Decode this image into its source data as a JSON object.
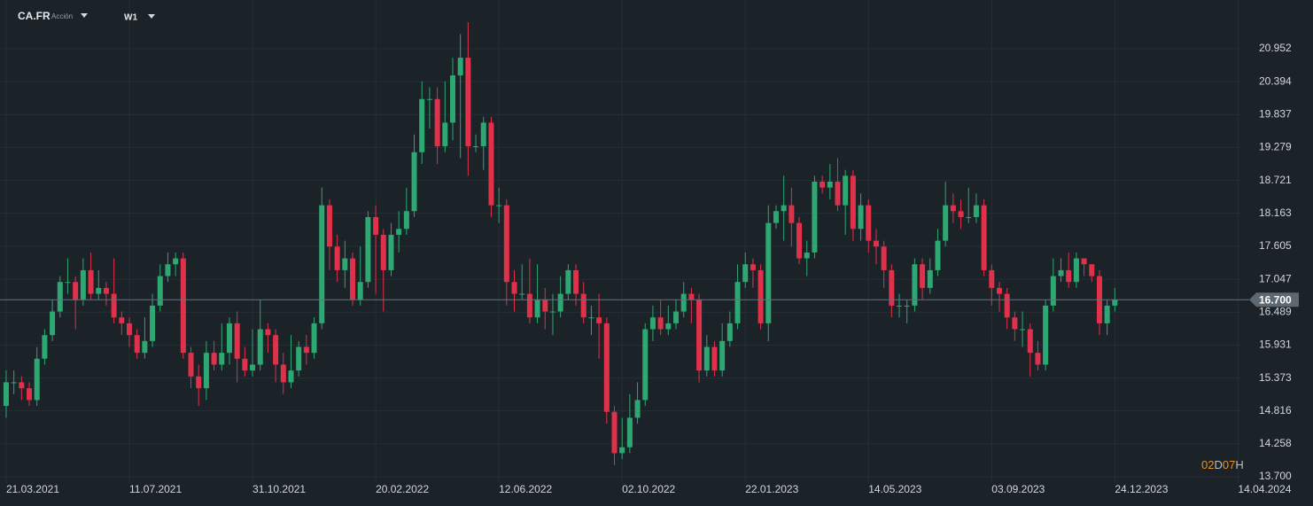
{
  "header": {
    "symbol": "CA.FR",
    "kind": "Acción",
    "timeframe": "W1"
  },
  "countdown": {
    "days": "02",
    "days_unit": "D",
    "hours": "07",
    "hours_unit": "H"
  },
  "chart_data": {
    "type": "candlestick",
    "up_color": "#2ea872",
    "down_color": "#e0314b",
    "grid": true,
    "xlim": [
      -0.8,
      160.3
    ],
    "xticks": [
      {
        "value": 0,
        "label": "21.03.2021"
      },
      {
        "value": 16,
        "label": "11.07.2021"
      },
      {
        "value": 32,
        "label": "31.10.2021"
      },
      {
        "value": 48,
        "label": "20.02.2022"
      },
      {
        "value": 64,
        "label": "12.06.2022"
      },
      {
        "value": 80,
        "label": "02.10.2022"
      },
      {
        "value": 96,
        "label": "22.01.2023"
      },
      {
        "value": 112,
        "label": "14.05.2023"
      },
      {
        "value": 128,
        "label": "03.09.2023"
      },
      {
        "value": 144,
        "label": "24.12.2023"
      },
      {
        "value": 160,
        "label": "14.04.2024"
      }
    ],
    "ylim": [
      13.595,
      21.778
    ],
    "yticks": [
      20.952,
      20.394,
      19.837,
      19.279,
      18.721,
      18.163,
      17.605,
      17.047,
      16.489,
      15.931,
      15.373,
      14.816,
      14.258,
      {
        "value": 13.7,
        "label": "13.700"
      }
    ],
    "current_price": {
      "value": 16.7,
      "label": "16.700"
    },
    "open": [
      14.9,
      15.3,
      15.3,
      15.2,
      15.0,
      15.7,
      16.1,
      16.5,
      17.0,
      17.0,
      16.7,
      17.2,
      16.8,
      16.9,
      16.8,
      16.4,
      16.3,
      16.1,
      15.8,
      16.0,
      16.6,
      17.1,
      17.3,
      17.4,
      15.8,
      15.4,
      15.2,
      15.8,
      15.6,
      15.8,
      16.3,
      15.7,
      15.5,
      15.6,
      16.2,
      16.1,
      15.6,
      15.3,
      15.5,
      15.9,
      15.8,
      16.3,
      18.3,
      17.6,
      17.2,
      17.4,
      16.7,
      17.0,
      18.1,
      17.8,
      17.2,
      17.8,
      17.9,
      18.2,
      19.2,
      20.1,
      20.1,
      19.3,
      19.7,
      20.5,
      20.8,
      19.3,
      19.3,
      19.7,
      18.3,
      18.3,
      17.0,
      16.8,
      16.8,
      16.4,
      16.7,
      16.5,
      16.5,
      16.8,
      17.2,
      16.8,
      16.4,
      16.4,
      16.3,
      14.8,
      14.1,
      14.2,
      14.7,
      15.0,
      16.2,
      16.4,
      16.2,
      16.3,
      16.5,
      16.8,
      16.7,
      15.5,
      15.9,
      15.5,
      16.0,
      16.3,
      17.0,
      17.3,
      17.2,
      16.3,
      18.0,
      18.2,
      18.3,
      18.0,
      17.4,
      17.5,
      18.7,
      18.6,
      18.7,
      18.3,
      18.8,
      17.9,
      18.3,
      17.7,
      17.6,
      17.2,
      16.6,
      16.6,
      16.6,
      17.3,
      16.9,
      17.2,
      17.7,
      18.3,
      18.2,
      18.1,
      18.1,
      18.3,
      17.2,
      16.9,
      16.8,
      16.4,
      16.2,
      16.2,
      15.8,
      15.6,
      16.6,
      17.1,
      17.2,
      17.0,
      17.4,
      17.3,
      17.1,
      16.3,
      16.6
    ],
    "high": [
      15.5,
      15.5,
      15.4,
      15.3,
      15.9,
      16.2,
      16.7,
      17.1,
      17.4,
      17.1,
      17.4,
      17.5,
      17.2,
      17.0,
      17.4,
      16.5,
      16.4,
      16.2,
      16.4,
      16.8,
      17.3,
      17.5,
      17.5,
      17.5,
      15.9,
      15.6,
      16.0,
      16.0,
      16.3,
      16.4,
      16.5,
      15.9,
      16.2,
      16.7,
      16.3,
      16.2,
      15.8,
      16.1,
      16.0,
      16.1,
      16.4,
      18.6,
      18.4,
      17.8,
      17.7,
      17.5,
      17.6,
      18.2,
      18.3,
      17.9,
      18.0,
      18.2,
      18.6,
      19.5,
      20.4,
      20.3,
      20.3,
      20.4,
      20.8,
      21.2,
      21.4,
      19.5,
      19.8,
      19.8,
      18.6,
      18.4,
      17.2,
      17.3,
      17.4,
      17.3,
      16.9,
      16.8,
      17.1,
      17.3,
      17.3,
      17.0,
      16.6,
      16.8,
      16.4,
      14.9,
      14.7,
      15.1,
      15.3,
      16.3,
      16.6,
      16.7,
      16.6,
      16.7,
      17.0,
      16.9,
      16.8,
      16.1,
      16.0,
      16.3,
      16.5,
      17.3,
      17.5,
      17.4,
      17.3,
      18.3,
      18.3,
      18.8,
      18.6,
      18.1,
      17.7,
      18.8,
      18.8,
      19.0,
      19.1,
      18.9,
      18.9,
      18.5,
      18.4,
      17.9,
      17.7,
      17.3,
      16.8,
      16.7,
      17.4,
      17.4,
      17.4,
      17.9,
      18.7,
      18.5,
      18.4,
      18.6,
      18.5,
      18.4,
      17.3,
      17.0,
      16.9,
      16.5,
      16.5,
      16.3,
      16.0,
      16.7,
      17.4,
      17.4,
      17.5,
      17.5,
      17.4,
      17.3,
      17.2,
      16.7,
      16.9
    ],
    "low": [
      14.7,
      15.1,
      15.0,
      14.9,
      14.9,
      15.6,
      16.0,
      16.4,
      16.8,
      16.2,
      16.6,
      16.7,
      16.7,
      16.6,
      16.3,
      16.1,
      15.9,
      15.7,
      15.7,
      15.9,
      16.5,
      17.0,
      17.1,
      15.7,
      15.2,
      14.9,
      15.0,
      15.5,
      15.5,
      15.6,
      15.3,
      15.4,
      15.4,
      15.5,
      15.8,
      15.3,
      15.1,
      15.2,
      15.4,
      15.6,
      15.7,
      16.2,
      17.2,
      17.0,
      16.9,
      16.6,
      16.6,
      16.9,
      16.8,
      16.5,
      17.1,
      17.5,
      17.8,
      18.1,
      19.0,
      19.6,
      19.0,
      19.2,
      19.4,
      19.1,
      18.8,
      19.2,
      18.9,
      18.1,
      18.0,
      16.6,
      16.5,
      16.7,
      16.3,
      16.3,
      16.2,
      16.1,
      16.4,
      16.7,
      16.6,
      16.3,
      16.1,
      15.7,
      14.6,
      13.9,
      14.0,
      14.1,
      14.6,
      14.9,
      16.0,
      16.1,
      16.1,
      16.2,
      16.4,
      16.3,
      15.3,
      15.4,
      15.4,
      15.4,
      15.9,
      16.2,
      16.9,
      16.9,
      16.2,
      16.0,
      17.9,
      17.7,
      17.6,
      17.3,
      17.1,
      17.4,
      18.5,
      18.4,
      18.2,
      17.8,
      17.7,
      17.7,
      17.5,
      17.3,
      16.9,
      16.4,
      16.4,
      16.3,
      16.5,
      16.7,
      16.8,
      17.1,
      17.6,
      18.0,
      17.9,
      18.0,
      18.0,
      17.1,
      16.6,
      16.5,
      16.2,
      16.0,
      15.9,
      15.4,
      15.5,
      15.5,
      16.5,
      17.0,
      16.9,
      16.9,
      17.1,
      17.0,
      16.1,
      16.1,
      16.5
    ],
    "close": [
      15.3,
      15.3,
      15.2,
      15.0,
      15.7,
      16.1,
      16.5,
      17.0,
      17.0,
      16.7,
      17.2,
      16.8,
      16.9,
      16.8,
      16.4,
      16.3,
      16.1,
      15.8,
      16.0,
      16.6,
      17.1,
      17.3,
      17.4,
      15.8,
      15.4,
      15.2,
      15.8,
      15.6,
      15.8,
      16.3,
      15.7,
      15.5,
      15.6,
      16.2,
      16.1,
      15.6,
      15.3,
      15.5,
      15.9,
      15.8,
      16.3,
      18.3,
      17.6,
      17.2,
      17.4,
      16.7,
      17.0,
      18.1,
      17.8,
      17.2,
      17.8,
      17.9,
      18.2,
      19.2,
      20.1,
      20.1,
      19.3,
      19.7,
      20.5,
      20.8,
      19.3,
      19.3,
      19.7,
      18.3,
      18.3,
      17.0,
      16.8,
      16.8,
      16.4,
      16.7,
      16.5,
      16.5,
      16.8,
      17.2,
      16.8,
      16.4,
      16.4,
      16.3,
      14.8,
      14.1,
      14.2,
      14.7,
      15.0,
      16.2,
      16.4,
      16.2,
      16.3,
      16.5,
      16.8,
      16.7,
      15.5,
      15.9,
      15.5,
      16.0,
      16.3,
      17.0,
      17.3,
      17.2,
      16.3,
      18.0,
      18.2,
      18.3,
      18.0,
      17.4,
      17.5,
      18.7,
      18.6,
      18.7,
      18.3,
      18.8,
      17.9,
      18.3,
      17.7,
      17.6,
      17.2,
      16.6,
      16.6,
      16.6,
      17.3,
      16.9,
      17.2,
      17.7,
      18.3,
      18.2,
      18.1,
      18.1,
      18.3,
      17.2,
      16.9,
      16.8,
      16.4,
      16.2,
      16.2,
      15.8,
      15.6,
      16.6,
      17.1,
      17.2,
      17.0,
      17.4,
      17.3,
      17.1,
      16.3,
      16.6,
      16.7
    ]
  }
}
